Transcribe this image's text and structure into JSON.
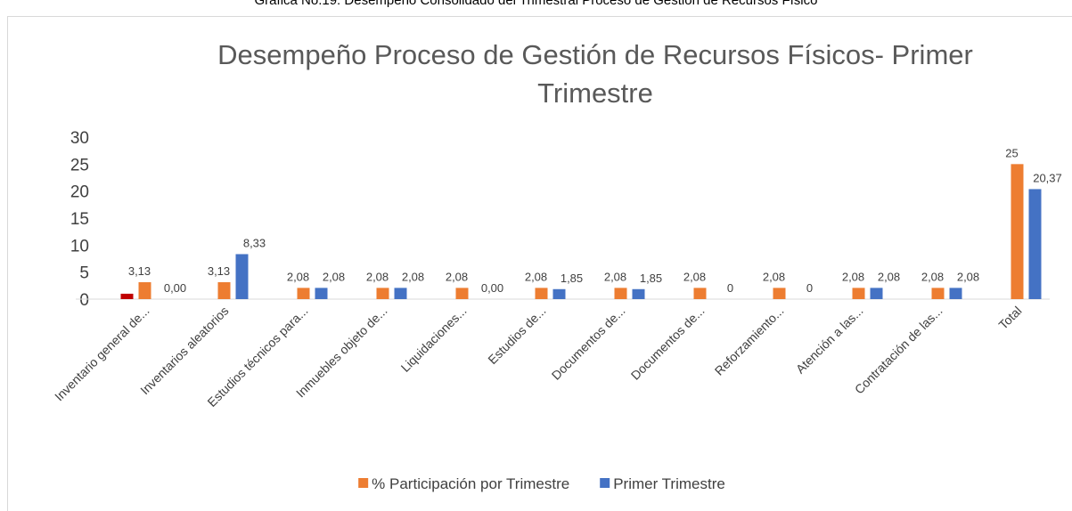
{
  "caption": "Gráfica No.19: Desempeño Consolidado del Trimestral Proceso de Gestión de Recursos Físico",
  "chart_data": {
    "type": "bar",
    "title": "Desempeño Proceso de Gestión de Recursos Físicos- Primer Trimestre",
    "categories": [
      "Inventario general de...",
      "Inventarios aleatorios",
      "Estudios técnicos para...",
      "Inmuebles objeto de...",
      "Liquidaciones...",
      "Estudios de...",
      "Documentos de...",
      "Documentos de...",
      "Reforzamiento...",
      "Atención a las...",
      "Contratación de las...",
      "Total"
    ],
    "series": [
      {
        "color": "#C00000",
        "values": [
          1,
          null,
          null,
          null,
          null,
          null,
          null,
          null,
          null,
          null,
          null,
          null
        ]
      },
      {
        "name": "% Participación por Trimestre",
        "color": "#ED7D31",
        "values": [
          3.13,
          3.13,
          2.08,
          2.08,
          2.08,
          2.08,
          2.08,
          2.08,
          2.08,
          2.08,
          2.08,
          25
        ],
        "value_labels": [
          "3,13",
          "3,13",
          "2,08",
          "2,08",
          "2,08",
          "2,08",
          "2,08",
          "2,08",
          "2,08",
          "2,08",
          "2,08",
          "25"
        ]
      },
      {
        "name": "Primer Trimestre",
        "color": "#4472C4",
        "values": [
          0,
          8.33,
          2.08,
          2.08,
          0,
          1.85,
          1.85,
          0,
          0,
          2.08,
          2.08,
          20.37
        ],
        "value_labels": [
          "0,00",
          "8,33",
          "2,08",
          "2,08",
          "0,00",
          "1,85",
          "1,85",
          "0",
          "0",
          "2,08",
          "2,08",
          "20,37"
        ]
      }
    ],
    "ylim": [
      0,
      30
    ],
    "yticks": [
      0,
      5,
      10,
      15,
      20,
      25,
      30
    ],
    "grid": false,
    "legend": "bottom"
  }
}
